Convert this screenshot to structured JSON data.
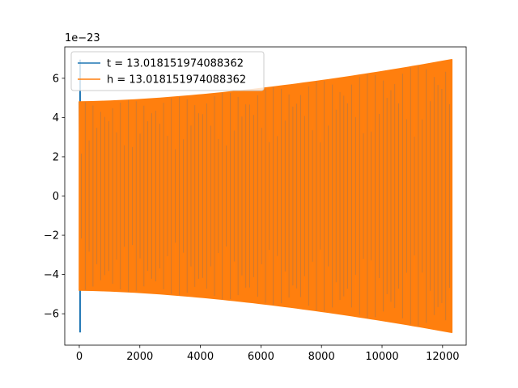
{
  "chart_data": {
    "type": "line",
    "title": "",
    "xlabel": "",
    "ylabel": "",
    "xlim": [
      -480,
      12780
    ],
    "ylim": [
      -7.6,
      7.6
    ],
    "y_offset_label": "1e−23",
    "x_ticks": [
      0,
      2000,
      4000,
      6000,
      8000,
      10000,
      12000
    ],
    "x_tick_labels": [
      "0",
      "2000",
      "4000",
      "6000",
      "8000",
      "10000",
      "12000"
    ],
    "y_ticks": [
      -6,
      -4,
      -2,
      0,
      2,
      4,
      6
    ],
    "y_tick_labels": [
      "−6",
      "−4",
      "−2",
      "0",
      "2",
      "4",
      "6"
    ],
    "grid": false,
    "legend_position": "top-left",
    "series": [
      {
        "name": "t = 13.018151974088362",
        "color": "#1f77b4",
        "x_range": [
          0,
          12300
        ],
        "envelope_start": 6.95,
        "envelope_end": 6.95,
        "description_values": [
          {
            "x": 0,
            "y": 6.9
          },
          {
            "x": 0,
            "y": -6.9
          },
          {
            "x": 12300,
            "y": 6.95
          },
          {
            "x": 12300,
            "y": -6.95
          }
        ]
      },
      {
        "name": "h = 13.018151974088362",
        "color": "#ff7f0e",
        "x_range": [
          0,
          12300
        ],
        "envelope_start": 4.8,
        "envelope_end": 6.95,
        "description_values": [
          {
            "x": 0,
            "y": 4.8
          },
          {
            "x": 0,
            "y": -4.8
          },
          {
            "x": 6000,
            "y": 5.4
          },
          {
            "x": 6000,
            "y": -5.4
          },
          {
            "x": 12300,
            "y": 6.95
          },
          {
            "x": 12300,
            "y": -6.95
          }
        ]
      }
    ]
  }
}
